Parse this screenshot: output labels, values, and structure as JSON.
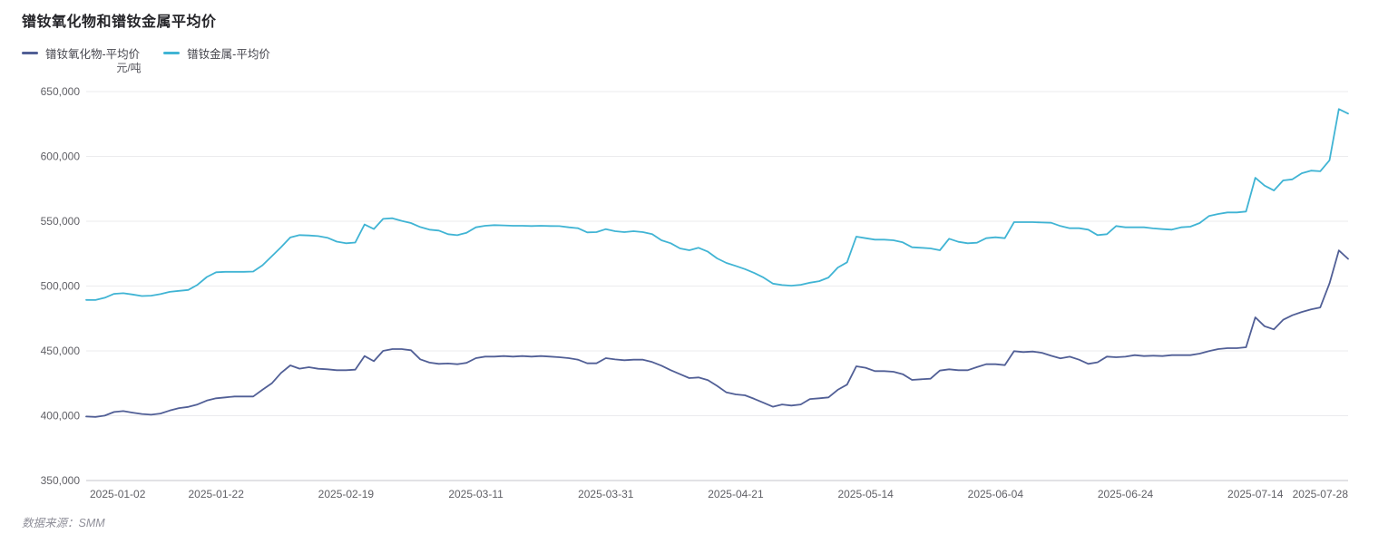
{
  "title": "镨钕氧化物和镨钕金属平均价",
  "y_axis": {
    "unit": "元/吨",
    "min": 350000,
    "max": 650000,
    "tick_step": 50000,
    "tick_labels": [
      "350,000",
      "400,000",
      "450,000",
      "500,000",
      "550,000",
      "600,000",
      "650,000"
    ]
  },
  "source_text": "数据来源：SMM",
  "legend": [
    {
      "label": "镨钕氧化物-平均价",
      "color": "#515f96"
    },
    {
      "label": "镨钕金属-平均价",
      "color": "#40b4d4"
    }
  ],
  "colors": {
    "grid_line": "#ebebee",
    "axis_line": "#c5c5cb",
    "tick_text": "#606066"
  },
  "chart_data": {
    "type": "line",
    "title": "镨钕氧化物和镨钕金属平均价",
    "ylabel": "元/吨",
    "ylim": [
      350000,
      650000
    ],
    "grid": true,
    "legend_position": "top-left",
    "x_start": "2025-01-02",
    "x_end": "2025-07-28",
    "x_frequency": "trading-day",
    "x_tick_labels": [
      "2025-01-02",
      "2025-01-22",
      "2025-02-19",
      "2025-03-11",
      "2025-03-31",
      "2025-04-21",
      "2025-05-14",
      "2025-06-04",
      "2025-06-24",
      "2025-07-14",
      "2025-07-28"
    ],
    "x_tick_indices": [
      0,
      14,
      28,
      42,
      56,
      70,
      84,
      98,
      112,
      126,
      136
    ],
    "series": [
      {
        "name": "镨钕氧化物-平均价",
        "color": "#515f96",
        "values": [
          399400,
          399000,
          400100,
          402900,
          403600,
          402400,
          401300,
          400800,
          401700,
          404000,
          405900,
          406800,
          408700,
          411700,
          413400,
          414100,
          414800,
          414800,
          414800,
          420000,
          425000,
          433000,
          438800,
          436300,
          437400,
          436200,
          435800,
          435100,
          435100,
          435500,
          446000,
          442000,
          450000,
          451400,
          451400,
          450500,
          443500,
          441000,
          440000,
          440300,
          439700,
          440800,
          444400,
          445600,
          445600,
          446000,
          445600,
          446000,
          445600,
          446000,
          445600,
          445100,
          444400,
          443200,
          440400,
          440400,
          444400,
          443400,
          442800,
          443200,
          443200,
          441400,
          438600,
          435100,
          432000,
          429000,
          429500,
          427500,
          423000,
          418000,
          416400,
          415700,
          413000,
          410000,
          406900,
          408700,
          407800,
          408700,
          412900,
          413400,
          414100,
          420000,
          424000,
          438100,
          437000,
          434400,
          434400,
          433900,
          432000,
          427600,
          428100,
          428500,
          434800,
          435800,
          435100,
          435100,
          437500,
          439700,
          439700,
          439000,
          449800,
          449100,
          449500,
          448500,
          446200,
          444300,
          445500,
          443200,
          440000,
          441200,
          445600,
          445100,
          445500,
          446700,
          446000,
          446300,
          446000,
          446700,
          446700,
          446700,
          447900,
          449800,
          451400,
          452100,
          452100,
          452800,
          475900,
          469000,
          466600,
          474000,
          477500,
          480000,
          482000,
          483500,
          502000,
          527500,
          521000
        ]
      },
      {
        "name": "镨钕金属-平均价",
        "color": "#40b4d4",
        "values": [
          489300,
          489200,
          491000,
          494000,
          494500,
          493500,
          492300,
          492600,
          493800,
          495500,
          496300,
          497000,
          501000,
          507000,
          510600,
          511000,
          511000,
          511000,
          511200,
          516000,
          523000,
          530000,
          537500,
          539300,
          539000,
          538500,
          537300,
          534300,
          533000,
          533600,
          547500,
          544000,
          551800,
          552300,
          550300,
          548600,
          545500,
          543500,
          542800,
          540000,
          539200,
          541100,
          545300,
          546500,
          547000,
          546800,
          546500,
          546500,
          546300,
          546500,
          546300,
          546200,
          545300,
          544600,
          541400,
          541600,
          543900,
          542300,
          541600,
          542300,
          541600,
          540000,
          535300,
          533000,
          529000,
          527600,
          529500,
          526500,
          521300,
          517800,
          515500,
          513100,
          510100,
          506600,
          501900,
          500800,
          500300,
          501000,
          502600,
          503800,
          506600,
          514300,
          518300,
          538100,
          536900,
          535800,
          535800,
          535300,
          533700,
          529900,
          529500,
          529000,
          527600,
          536500,
          534100,
          533000,
          533400,
          536900,
          537600,
          536900,
          549300,
          549300,
          549300,
          549000,
          548800,
          546300,
          544600,
          544600,
          543500,
          539300,
          540000,
          546300,
          545300,
          545300,
          545300,
          544500,
          543900,
          543500,
          545300,
          545800,
          548600,
          554000,
          555600,
          556800,
          556800,
          557500,
          583500,
          577500,
          573700,
          581500,
          582300,
          587000,
          589000,
          588500,
          597000,
          636500,
          633000
        ]
      }
    ],
    "source": "SMM"
  }
}
